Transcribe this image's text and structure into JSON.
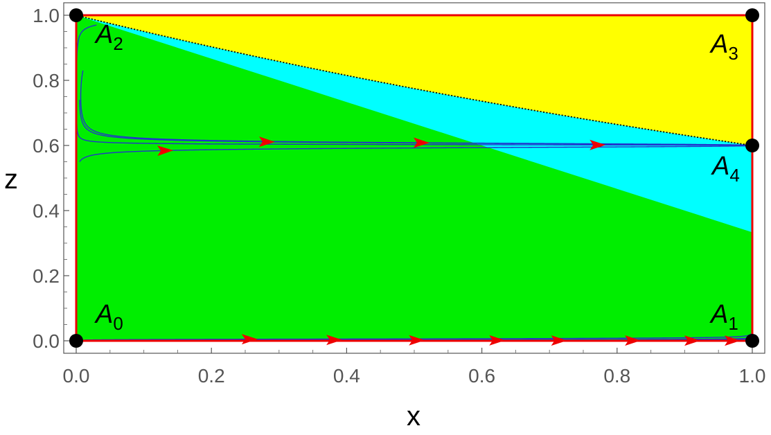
{
  "chart_data": {
    "type": "phase-portrait",
    "xlabel": "x",
    "ylabel": "z",
    "xlim": [
      0,
      1
    ],
    "ylim": [
      0,
      1
    ],
    "x_ticks": [
      "0.0",
      "0.2",
      "0.4",
      "0.6",
      "0.8",
      "1.0"
    ],
    "y_ticks": [
      "0.0",
      "0.2",
      "0.4",
      "0.6",
      "0.8",
      "1.0"
    ],
    "regions": [
      {
        "name": "green",
        "color": "#00ee00",
        "bounded_above_by": "line z = 1 - 0.667x"
      },
      {
        "name": "cyan",
        "color": "#00ffff",
        "between": [
          "line z = 1 - 0.667x",
          "curve z = 0.6^x"
        ]
      },
      {
        "name": "yellow",
        "color": "#ffff00",
        "bounded_below_by": "curve z = 0.6^x"
      }
    ],
    "separatrix": {
      "style": "dotted",
      "color": "#000000",
      "from": [
        0,
        1
      ],
      "to": [
        1,
        0.6
      ]
    },
    "boundary_color": "#ee0000",
    "trajectory_color": "#2233cc",
    "arrow_color": "#ee0000",
    "equilibria": [
      {
        "label": "A",
        "sub": "0",
        "x": 0,
        "z": 0
      },
      {
        "label": "A",
        "sub": "1",
        "x": 1,
        "z": 0
      },
      {
        "label": "A",
        "sub": "2",
        "x": 0,
        "z": 1
      },
      {
        "label": "A",
        "sub": "3",
        "x": 1,
        "z": 1
      },
      {
        "label": "A",
        "sub": "4",
        "x": 1,
        "z": 0.6
      }
    ],
    "trajectories": [
      {
        "x0": 0.03,
        "z0": 0.97,
        "arrow_at": 0.77
      },
      {
        "x0": 0.01,
        "z0": 0.83,
        "arrow_at": 0.51
      },
      {
        "x0": 0.005,
        "z0": 0.74,
        "arrow_at": 0.28
      },
      {
        "x0": 0.005,
        "z0": 0.55,
        "arrow_at": 0.13
      },
      {
        "x0": 0.012,
        "z0": 0.0025,
        "arrow_at": 0.25
      },
      {
        "x0": 0.03,
        "z0": 0.0015,
        "arrow_at": 0.38
      },
      {
        "x0": 0.08,
        "z0": 0.001,
        "arrow_at": 0.5
      },
      {
        "x0": 0.16,
        "z0": 0.0008,
        "arrow_at": 0.62
      },
      {
        "x0": 0.28,
        "z0": 0.0006,
        "arrow_at": 0.71
      },
      {
        "x0": 0.42,
        "z0": 0.0005,
        "arrow_at": 0.82
      },
      {
        "x0": 0.6,
        "z0": 0.0004,
        "arrow_at": 0.91
      },
      {
        "x0": 0.8,
        "z0": 0.0003,
        "arrow_at": 0.97
      }
    ]
  }
}
